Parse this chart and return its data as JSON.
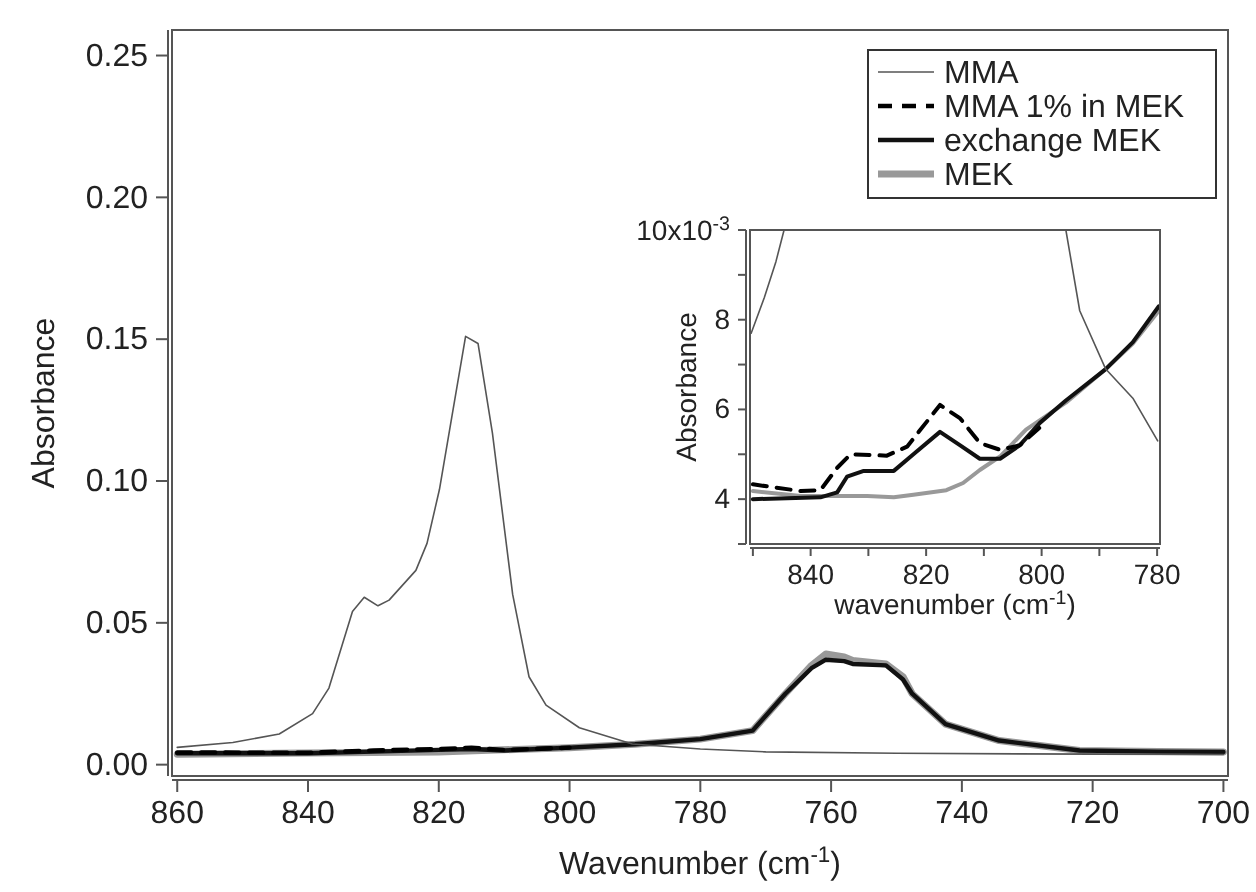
{
  "chart_data": [
    {
      "type": "line",
      "xlabel": "Wavenumber (cm$^{-1}$)",
      "ylabel": "Absorbance",
      "xlim": [
        860.8,
        699.3
      ],
      "ylim": [
        -0.004,
        0.259
      ],
      "xticks": [
        860,
        840,
        820,
        800,
        780,
        760,
        740,
        720,
        700
      ],
      "yticks": [
        {
          "value": 0,
          "label": "0.00"
        },
        {
          "value": 0.05,
          "label": "0.05"
        },
        {
          "value": 0.1,
          "label": "0.10"
        },
        {
          "value": 0.15,
          "label": "0.15"
        },
        {
          "value": 0.2,
          "label": "0.20"
        },
        {
          "value": 0.25,
          "label": "0.25"
        }
      ],
      "legend": "top right",
      "grid": false,
      "series": [
        {
          "name": "MMA",
          "color": "#555555",
          "line_style": "solid",
          "x": [
            860,
            851.5,
            844.4,
            839.3,
            836.8,
            833.2,
            831.4,
            829.3,
            827.6,
            823.5,
            821.8,
            819.9,
            817.9,
            815.9,
            814,
            811.8,
            808.7,
            806.2,
            803.6,
            798.5,
            790.4,
            780,
            770,
            750,
            720,
            700
          ],
          "values": [
            0.0061,
            0.0078,
            0.0108,
            0.018,
            0.027,
            0.054,
            0.059,
            0.056,
            0.058,
            0.0685,
            0.078,
            0.097,
            0.124,
            0.151,
            0.1485,
            0.117,
            0.06,
            0.031,
            0.021,
            0.013,
            0.0073,
            0.0055,
            0.0045,
            0.004,
            0.0037,
            0.0036
          ]
        },
        {
          "name": "MMA 1% in MEK",
          "color": "#000000",
          "line_style": "dashed",
          "x": [
            860,
            840,
            830,
            820,
            815,
            810,
            800
          ],
          "values": [
            0.0043,
            0.0042,
            0.005,
            0.0055,
            0.006,
            0.0052,
            0.006
          ]
        },
        {
          "name": "exchange MEK",
          "color": "#111111",
          "line_style": "solid",
          "x": [
            860,
            840,
            830,
            820,
            815,
            810,
            800,
            790,
            780,
            772,
            767,
            763,
            760.8,
            758,
            756.7,
            751.6,
            749,
            747.6,
            742.5,
            734.3,
            722,
            710,
            700
          ],
          "values": [
            0.004,
            0.004,
            0.0046,
            0.0052,
            0.0055,
            0.005,
            0.006,
            0.0072,
            0.009,
            0.012,
            0.025,
            0.034,
            0.037,
            0.0365,
            0.0355,
            0.035,
            0.03,
            0.025,
            0.0143,
            0.0085,
            0.005,
            0.0046,
            0.0045
          ]
        },
        {
          "name": "MEK",
          "color": "#999999",
          "line_style": "solid",
          "x": [
            860,
            840,
            820,
            800,
            790,
            780,
            772,
            767,
            763,
            760.8,
            758,
            756.7,
            751.6,
            749,
            747.6,
            742.5,
            734.3,
            722,
            710,
            700
          ],
          "values": [
            0.0037,
            0.0041,
            0.0045,
            0.006,
            0.0072,
            0.009,
            0.012,
            0.025,
            0.035,
            0.039,
            0.038,
            0.0367,
            0.0355,
            0.031,
            0.025,
            0.0143,
            0.0085,
            0.005,
            0.0046,
            0.0045
          ]
        }
      ]
    },
    {
      "type": "line",
      "xlabel": "wavenumber (cm$^{-1}$)",
      "ylabel": "Absorbance",
      "xlim": [
        850.5,
        779.5
      ],
      "ylim": [
        3,
        10
      ],
      "xticks": [
        {
          "value": 850,
          "label": null
        },
        840,
        {
          "value": 830,
          "label": null
        },
        820,
        {
          "value": 810,
          "label": null
        },
        800,
        {
          "value": 790,
          "label": null
        },
        780
      ],
      "yticks": [
        {
          "value": 3,
          "label": null
        },
        4,
        {
          "value": 5,
          "label": null
        },
        6,
        {
          "value": 7,
          "label": null
        },
        8,
        {
          "value": 9,
          "label": null
        },
        {
          "value": 10,
          "label": null
        }
      ],
      "annotations": [
        "10x10$^{-3}$"
      ],
      "grid": false,
      "series": [
        {
          "color": "#555555",
          "line_style": "solid",
          "x": [
            850.3,
            848,
            846,
            844.6,
            820,
            795.8,
            793.4,
            788.9,
            784.2,
            779.9
          ],
          "values": [
            7.7,
            8.5,
            9.3,
            10,
            null,
            10,
            8.2,
            6.9,
            6.25,
            5.3
          ]
        },
        {
          "color": "#000000",
          "line_style": "dashed",
          "x": [
            850,
            841.7,
            838.3,
            835.4,
            833.1,
            826.8,
            823.3,
            817.6,
            814.1,
            810.7,
            807.2,
            803.8,
            800.3
          ],
          "values": [
            4.33,
            4.18,
            4.2,
            4.7,
            5,
            4.97,
            5.17,
            6.1,
            5.8,
            5.25,
            5.1,
            5.2,
            5.6
          ]
        },
        {
          "color": "#111111",
          "line_style": "solid",
          "x": [
            850,
            838.3,
            835.4,
            833.7,
            830.8,
            825.6,
            822.2,
            817.6,
            814.1,
            810.7,
            807.2,
            803.8,
            800.3,
            795.8,
            788.9,
            784.2,
            779.7
          ],
          "values": [
            4,
            4.04,
            4.15,
            4.5,
            4.63,
            4.63,
            5,
            5.5,
            5.2,
            4.9,
            4.9,
            5.2,
            5.7,
            6.2,
            6.9,
            7.5,
            8.3
          ]
        },
        {
          "color": "#999999",
          "line_style": "solid",
          "x": [
            850,
            841.7,
            830.2,
            825.6,
            822.2,
            816.5,
            813.6,
            810.7,
            807.2,
            802.7,
            795.8,
            788.9,
            784.2,
            779.7
          ],
          "values": [
            4.18,
            4.07,
            4.07,
            4.04,
            4.1,
            4.2,
            4.36,
            4.65,
            4.95,
            5.55,
            6.15,
            6.9,
            7.47,
            8.2
          ]
        }
      ]
    }
  ]
}
